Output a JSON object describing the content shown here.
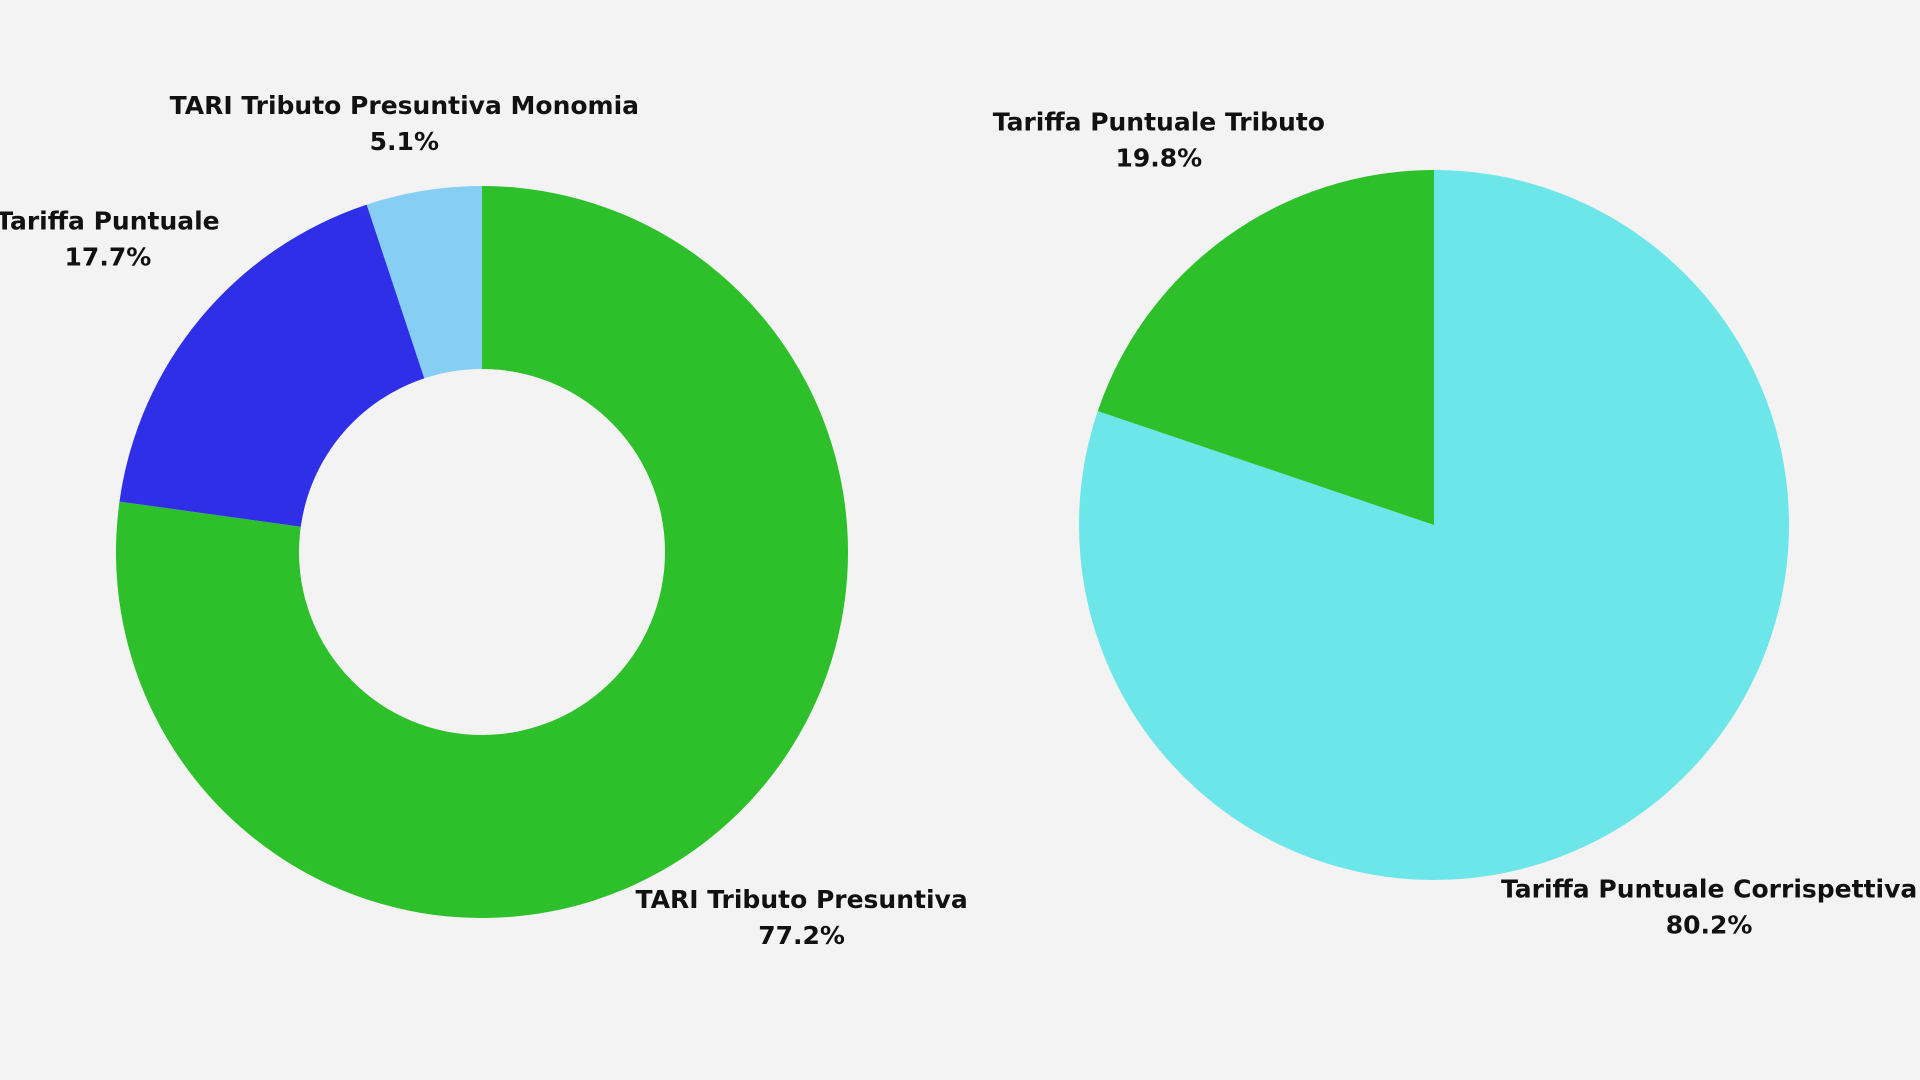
{
  "chart_data": [
    {
      "type": "donut",
      "categories": [
        "TARI Tributo Presuntiva",
        "Tariffa Puntuale",
        "TARI Tributo Presuntiva Monomia"
      ],
      "values": [
        77.2,
        17.7,
        5.1
      ],
      "value_labels": [
        "77.2%",
        "17.7%",
        "5.1%"
      ],
      "colors": [
        "#2ec02b",
        "#2f2fe8",
        "#87cef5"
      ]
    },
    {
      "type": "pie",
      "categories": [
        "Tariffa Puntuale Corrispettiva",
        "Tariffa Puntuale Tributo"
      ],
      "values": [
        80.2,
        19.8
      ],
      "value_labels": [
        "80.2%",
        "19.8%"
      ],
      "colors": [
        "#6ce6e8",
        "#2ec02b"
      ]
    }
  ]
}
